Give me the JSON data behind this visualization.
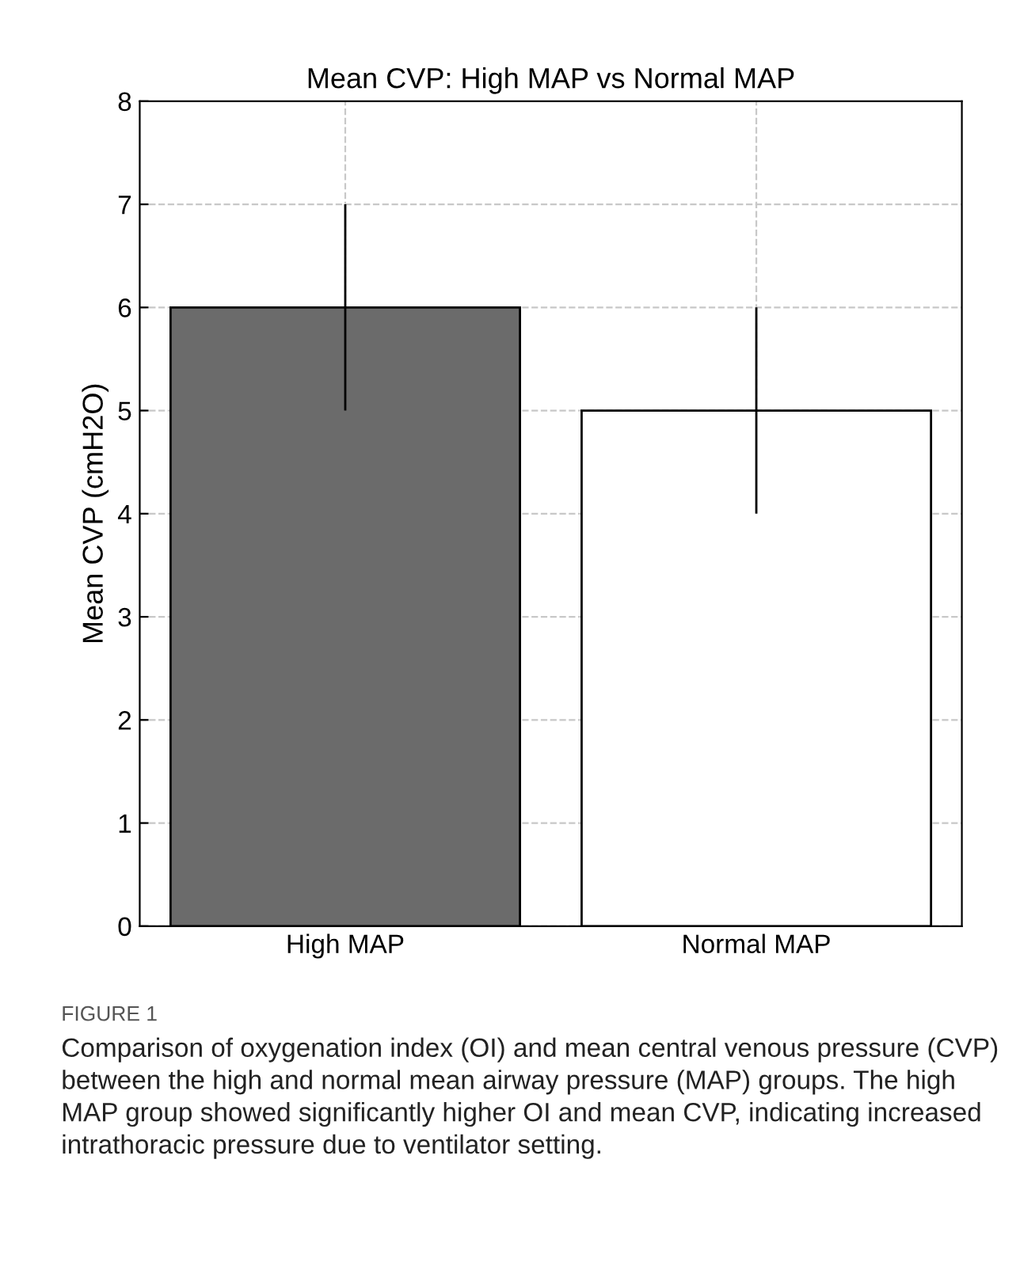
{
  "chart_data": {
    "type": "bar",
    "title": "Mean CVP: High MAP vs Normal MAP",
    "ylabel": "Mean CVP (cmH2O)",
    "categories": [
      "High MAP",
      "Normal MAP"
    ],
    "values": [
      6,
      5
    ],
    "colors": [
      "#6b6b6b",
      "#ffffff"
    ],
    "errors": [
      1,
      1
    ],
    "ylim": [
      0,
      8
    ],
    "yticks": [
      0,
      1,
      2,
      3,
      4,
      5,
      6,
      7,
      8
    ],
    "grid": true,
    "annotations": [
      "FIGURE 1",
      "Comparison of oxygenation index (OI) and mean central venous pressure (CVP) between the high and normal mean airway pressure (MAP) groups. The high MAP group showed significantly higher OI and mean CVP, indicating increased intrathoracic pressure due to ventilator setting."
    ]
  }
}
